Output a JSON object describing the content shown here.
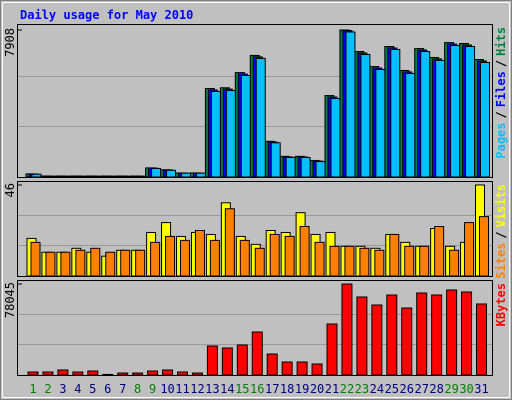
{
  "chart_data": [
    {
      "type": "bar",
      "title": "Daily usage for May 2010",
      "ylim": [
        0,
        7908
      ],
      "yticks": [
        7908
      ],
      "legend_separator": "/",
      "series": [
        {
          "name": "Hits",
          "color": "#008040",
          "values": [
            170,
            55,
            55,
            55,
            55,
            55,
            55,
            55,
            490,
            390,
            220,
            220,
            4760,
            4800,
            5620,
            6540,
            1920,
            1110,
            1110,
            890,
            4380,
            7908,
            6750,
            5940,
            7020,
            5730,
            6910,
            6430,
            7230,
            7180,
            6320
          ]
        },
        {
          "name": "Files",
          "color": "#0000ff",
          "values": [
            160,
            50,
            50,
            50,
            50,
            50,
            50,
            50,
            480,
            380,
            215,
            215,
            4680,
            4730,
            5540,
            6460,
            1880,
            1080,
            1080,
            860,
            4300,
            7880,
            6670,
            5860,
            6940,
            5650,
            6830,
            6350,
            7150,
            7100,
            6240
          ]
        },
        {
          "name": "Pages",
          "color": "#00c0ff",
          "values": [
            150,
            45,
            45,
            45,
            45,
            45,
            45,
            45,
            460,
            360,
            205,
            205,
            4600,
            4650,
            5460,
            6380,
            1840,
            1050,
            1050,
            830,
            4220,
            7800,
            6590,
            5780,
            6860,
            5570,
            6750,
            6270,
            7070,
            7020,
            6160
          ]
        }
      ]
    },
    {
      "type": "bar",
      "ylim": [
        0,
        46
      ],
      "yticks": [
        46
      ],
      "legend_separator": "/",
      "series": [
        {
          "name": "Visits",
          "color": "#ffff00",
          "values": [
            19,
            12,
            12,
            14,
            12,
            10,
            13,
            13,
            22,
            27,
            20,
            22,
            21,
            37,
            20,
            16,
            23,
            22,
            32,
            21,
            22,
            15,
            15,
            14,
            21,
            17,
            15,
            24,
            15,
            17,
            46
          ]
        },
        {
          "name": "Sites",
          "color": "#ff8000",
          "values": [
            17,
            12,
            12,
            13,
            14,
            12,
            13,
            13,
            17,
            20,
            18,
            23,
            18,
            34,
            18,
            14,
            21,
            20,
            25,
            17,
            15,
            15,
            14,
            13,
            21,
            15,
            15,
            25,
            13,
            27,
            30
          ]
        }
      ]
    },
    {
      "type": "bar",
      "ylim": [
        0,
        78045
      ],
      "yticks": [
        78045
      ],
      "categories": [
        "1",
        "2",
        "3",
        "4",
        "5",
        "6",
        "7",
        "8",
        "9",
        "10",
        "11",
        "12",
        "13",
        "14",
        "15",
        "16",
        "17",
        "18",
        "19",
        "20",
        "21",
        "22",
        "23",
        "24",
        "25",
        "26",
        "27",
        "28",
        "29",
        "30",
        "31"
      ],
      "weekend": [
        0,
        1,
        7,
        8,
        14,
        15,
        21,
        22,
        28,
        29
      ],
      "weekend_color": "#008000",
      "series": [
        {
          "name": "KBytes",
          "color": "#ff0000",
          "values": [
            2570,
            2570,
            4290,
            2570,
            3430,
            500,
            1700,
            1700,
            3430,
            4290,
            2570,
            1700,
            24870,
            23160,
            25730,
            36880,
            18010,
            11150,
            11150,
            9430,
            43740,
            78045,
            66900,
            60040,
            68620,
            57470,
            70330,
            68620,
            72910,
            71190,
            60900
          ]
        }
      ]
    }
  ]
}
